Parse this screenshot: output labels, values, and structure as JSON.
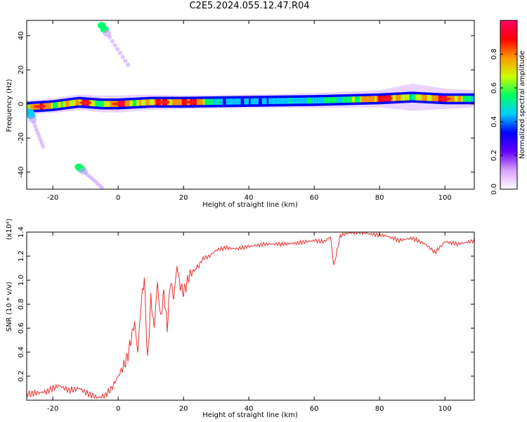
{
  "title": "C2E5.2024.055.12.47.R04",
  "chart_data": [
    {
      "type": "heatmap",
      "title": "C2E5.2024.055.12.47.R04",
      "xlabel": "Height of straight line (km)",
      "ylabel": "Frequency (Hz)",
      "xlim": [
        -28,
        109
      ],
      "ylim": [
        -50,
        49
      ],
      "x_ticks": [
        -20,
        0,
        20,
        40,
        60,
        80,
        100
      ],
      "y_ticks": [
        -40,
        -20,
        0,
        20,
        40
      ],
      "colorbar": {
        "label": "Normalized spectral amplitude",
        "range": [
          0,
          1
        ],
        "ticks": [
          "0.0",
          "0.2",
          "0.4",
          "0.6",
          "0.8"
        ],
        "colors": [
          "#ffffff",
          "#d9a0ff",
          "#6600ff",
          "#0000ff",
          "#00ccff",
          "#00ff66",
          "#ccff00",
          "#ff9900",
          "#ff0000",
          "#ff0066"
        ]
      },
      "band": {
        "description_freq_hz": [
          [
            -28,
            -2
          ],
          [
            -20,
            -1
          ],
          [
            -12,
            1
          ],
          [
            -5,
            0
          ],
          [
            0,
            0
          ],
          [
            10,
            1
          ],
          [
            20,
            1
          ],
          [
            40,
            1.5
          ],
          [
            60,
            2
          ],
          [
            80,
            3
          ],
          [
            90,
            4
          ],
          [
            100,
            3
          ],
          [
            109,
            3
          ]
        ],
        "intensity": [
          [
            -28,
            0.55
          ],
          [
            -24,
            0.9
          ],
          [
            -20,
            0.6
          ],
          [
            -14,
            0.7
          ],
          [
            -10,
            0.85
          ],
          [
            -5,
            0.5
          ],
          [
            0,
            0.95
          ],
          [
            5,
            0.6
          ],
          [
            10,
            0.75
          ],
          [
            14,
            0.85
          ],
          [
            18,
            0.7
          ],
          [
            22,
            0.95
          ],
          [
            30,
            0.45
          ],
          [
            40,
            0.4
          ],
          [
            55,
            0.45
          ],
          [
            70,
            0.55
          ],
          [
            82,
            0.9
          ],
          [
            90,
            0.55
          ],
          [
            100,
            0.9
          ],
          [
            109,
            0.45
          ]
        ],
        "halo_hz": [
          [
            -28,
            4
          ],
          [
            0,
            5
          ],
          [
            20,
            4
          ],
          [
            50,
            4
          ],
          [
            80,
            5
          ],
          [
            90,
            8
          ],
          [
            100,
            6
          ],
          [
            109,
            5
          ]
        ]
      },
      "sidebands": [
        {
          "x": [
            -5,
            3
          ],
          "y": [
            46,
            23
          ],
          "intensity": 0.6
        },
        {
          "x": [
            -12,
            -5
          ],
          "y": [
            -37,
            -49
          ],
          "intensity": 0.6
        },
        {
          "x": [
            -27,
            -23
          ],
          "y": [
            -5,
            -25
          ],
          "intensity": 0.45
        }
      ]
    },
    {
      "type": "line",
      "xlabel": "Height of straight line (km)",
      "ylabel": "SNR (10 * v/v)",
      "y_multiplier": "(x10⁴)",
      "xlim": [
        -28,
        109
      ],
      "ylim": [
        0.0,
        1.4
      ],
      "x_ticks": [
        -20,
        0,
        20,
        40,
        60,
        80,
        100
      ],
      "y_ticks": [
        0.2,
        0.4,
        0.6,
        0.8,
        1.0,
        1.2,
        1.4
      ],
      "color": "#e8302f",
      "series": [
        {
          "x": [
            -28,
            -25,
            -22,
            -20,
            -18,
            -15,
            -12,
            -9,
            -6,
            -4,
            -2,
            0,
            2,
            3,
            5,
            6,
            7,
            8,
            9,
            10,
            11,
            12,
            13,
            14,
            15,
            16,
            17,
            18,
            19,
            20,
            22,
            24,
            26,
            28,
            30,
            33,
            36,
            40,
            45,
            50,
            55,
            60,
            63,
            65,
            66,
            68,
            70,
            74,
            78,
            82,
            86,
            90,
            94,
            97,
            100,
            104,
            109
          ],
          "y": [
            0.05,
            0.06,
            0.07,
            0.1,
            0.12,
            0.08,
            0.1,
            0.05,
            0.02,
            0.04,
            0.1,
            0.2,
            0.3,
            0.38,
            0.65,
            0.4,
            0.8,
            1.02,
            0.32,
            0.85,
            0.6,
            0.98,
            0.68,
            0.9,
            0.6,
            1.0,
            0.85,
            1.12,
            0.95,
            0.9,
            1.05,
            1.1,
            1.18,
            1.2,
            1.25,
            1.27,
            1.26,
            1.28,
            1.3,
            1.3,
            1.31,
            1.33,
            1.32,
            1.36,
            1.12,
            1.37,
            1.39,
            1.4,
            1.38,
            1.37,
            1.33,
            1.35,
            1.3,
            1.23,
            1.32,
            1.3,
            1.33
          ]
        }
      ]
    }
  ]
}
